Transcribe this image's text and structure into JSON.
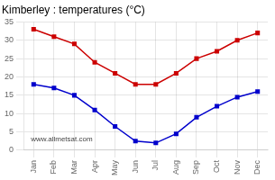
{
  "chart_data": {
    "type": "line",
    "title": "Kimberley : temperatures (°C)",
    "categories": [
      "Jan",
      "Feb",
      "Mar",
      "Apr",
      "May",
      "Jun",
      "Jul",
      "Aug",
      "Sep",
      "Oct",
      "Nov",
      "Dec"
    ],
    "series": [
      {
        "color": "#cc0000",
        "values": [
          33,
          31,
          29,
          24,
          21,
          18,
          18,
          21,
          25,
          27,
          30,
          32
        ]
      },
      {
        "color": "#0000cc",
        "values": [
          18,
          17,
          15,
          11,
          6.5,
          2.5,
          2,
          4.5,
          9,
          12,
          14.5,
          16
        ]
      }
    ],
    "ylim": [
      0,
      35
    ],
    "yticks": [
      0,
      5,
      10,
      15,
      20,
      25,
      30,
      35
    ],
    "grid": true,
    "marker": "square",
    "line_style": "solid",
    "annotation": "www.allmetsat.com"
  }
}
